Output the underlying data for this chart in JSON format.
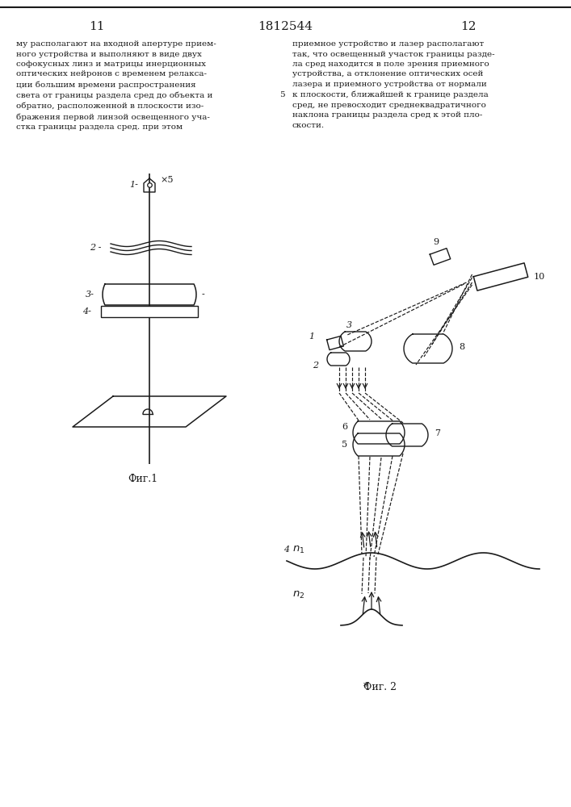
{
  "page_num_left": "11",
  "page_num_center": "1812544",
  "page_num_right": "12",
  "text_left": "му располагают на входной апертуре прием-\nного устройства и выполняют в виде двух\nсофокусных линз и матрицы инерционных\nоптических нейронов с временем релакса-\nции большим времени распространения\nсвета от границы раздела сред до объекта и\nобратно, расположенной в плоскости изо-\nбражения первой линзой освещенного уча-\nстка границы раздела сред. при этом",
  "text_right": "приемное устройство и лазер располагают\nтак, что освещенный участок границы разде-\nла сред находится в поле зрения приемного\nустройства, а отклонение оптических осей\nлазера и приемного устройства от нормали\nк плоскости, ближайшей к границе раздела\nсред, не превосходит среднеквадратичного\nнаклона границы раздела сред к этой пло-\nскости.",
  "fig1_label": "Фиг.1",
  "fig2_label": "Фиг. 2",
  "background_color": "#ffffff",
  "line_color": "#1a1a1a",
  "text_color": "#1a1a1a",
  "col5_num": "5"
}
